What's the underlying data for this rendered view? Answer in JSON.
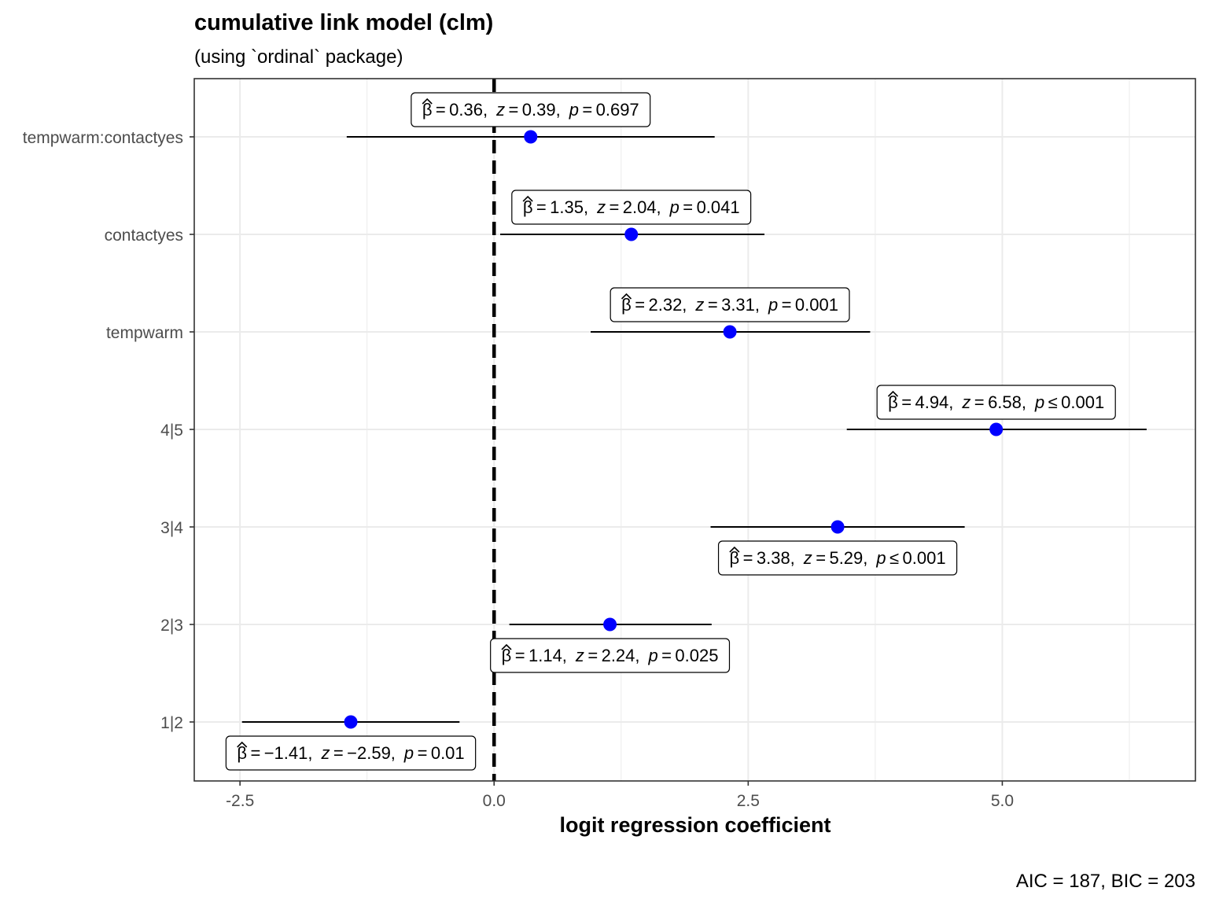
{
  "chart_data": {
    "type": "scatter",
    "title": "cumulative link model (clm)",
    "subtitle": "(using `ordinal` package)",
    "xlabel": "logit regression coefficient",
    "ylabel": "",
    "xlim": [
      -2.95,
      6.9
    ],
    "x_ticks": [
      -2.5,
      0.0,
      2.5,
      5.0
    ],
    "x_tick_labels": [
      "-2.5",
      "0.0",
      "2.5",
      "5.0"
    ],
    "grid": true,
    "reference_line": {
      "x": 0,
      "style": "dashed"
    },
    "caption": "AIC = 187, BIC = 203",
    "terms": [
      {
        "term": "tempwarm:contactyes",
        "estimate": 0.36,
        "conf_low": -1.45,
        "conf_high": 2.17,
        "label": {
          "beta": "0.36",
          "z": "0.39",
          "p": "0.697",
          "p_op": "="
        },
        "label_pos": "above"
      },
      {
        "term": "contactyes",
        "estimate": 1.35,
        "conf_low": 0.06,
        "conf_high": 2.66,
        "label": {
          "beta": "1.35",
          "z": "2.04",
          "p": "0.041",
          "p_op": "="
        },
        "label_pos": "above"
      },
      {
        "term": "tempwarm",
        "estimate": 2.32,
        "conf_low": 0.95,
        "conf_high": 3.7,
        "label": {
          "beta": "2.32",
          "z": "3.31",
          "p": "0.001",
          "p_op": "="
        },
        "label_pos": "above"
      },
      {
        "term": "4|5",
        "estimate": 4.94,
        "conf_low": 3.47,
        "conf_high": 6.42,
        "label": {
          "beta": "4.94",
          "z": "6.58",
          "p": "0.001",
          "p_op": "≤"
        },
        "label_pos": "above"
      },
      {
        "term": "3|4",
        "estimate": 3.38,
        "conf_low": 2.13,
        "conf_high": 4.63,
        "label": {
          "beta": "3.38",
          "z": "5.29",
          "p": "0.001",
          "p_op": "≤"
        },
        "label_pos": "below"
      },
      {
        "term": "2|3",
        "estimate": 1.14,
        "conf_low": 0.15,
        "conf_high": 2.14,
        "label": {
          "beta": "1.14",
          "z": "2.24",
          "p": "0.025",
          "p_op": "="
        },
        "label_pos": "below"
      },
      {
        "term": "1|2",
        "estimate": -1.41,
        "conf_low": -2.48,
        "conf_high": -0.34,
        "label": {
          "beta": "−1.41",
          "z": "−2.59",
          "p": "0.01",
          "p_op": "="
        },
        "label_pos": "below"
      }
    ]
  },
  "colors": {
    "point": "#0000ff",
    "grid": "#ebebeb",
    "panel_border": "#333333",
    "tick_text": "#4d4d4d"
  }
}
